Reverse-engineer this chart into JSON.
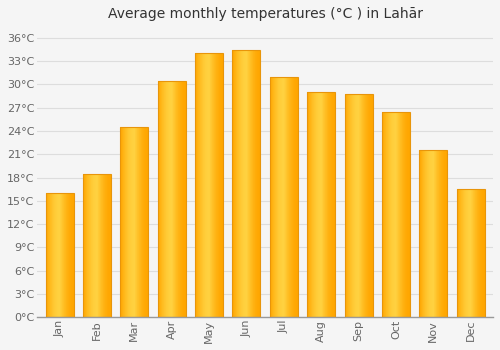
{
  "title": "Average monthly temperatures (°C ) in Lahār",
  "months": [
    "Jan",
    "Feb",
    "Mar",
    "Apr",
    "May",
    "Jun",
    "Jul",
    "Aug",
    "Sep",
    "Oct",
    "Nov",
    "Dec"
  ],
  "values": [
    16.0,
    18.5,
    24.5,
    30.5,
    34.0,
    34.5,
    31.0,
    29.0,
    28.8,
    26.5,
    21.5,
    16.5
  ],
  "bar_color_main": "#FFA500",
  "bar_color_light": "#FFD060",
  "bar_edge_color": "#E8950A",
  "background_color": "#F5F5F5",
  "grid_color": "#DDDDDD",
  "yticks": [
    0,
    3,
    6,
    9,
    12,
    15,
    18,
    21,
    24,
    27,
    30,
    33,
    36
  ],
  "ylim": [
    0,
    37.5
  ],
  "title_fontsize": 10,
  "tick_fontsize": 8,
  "title_color": "#333333",
  "tick_color": "#666666"
}
